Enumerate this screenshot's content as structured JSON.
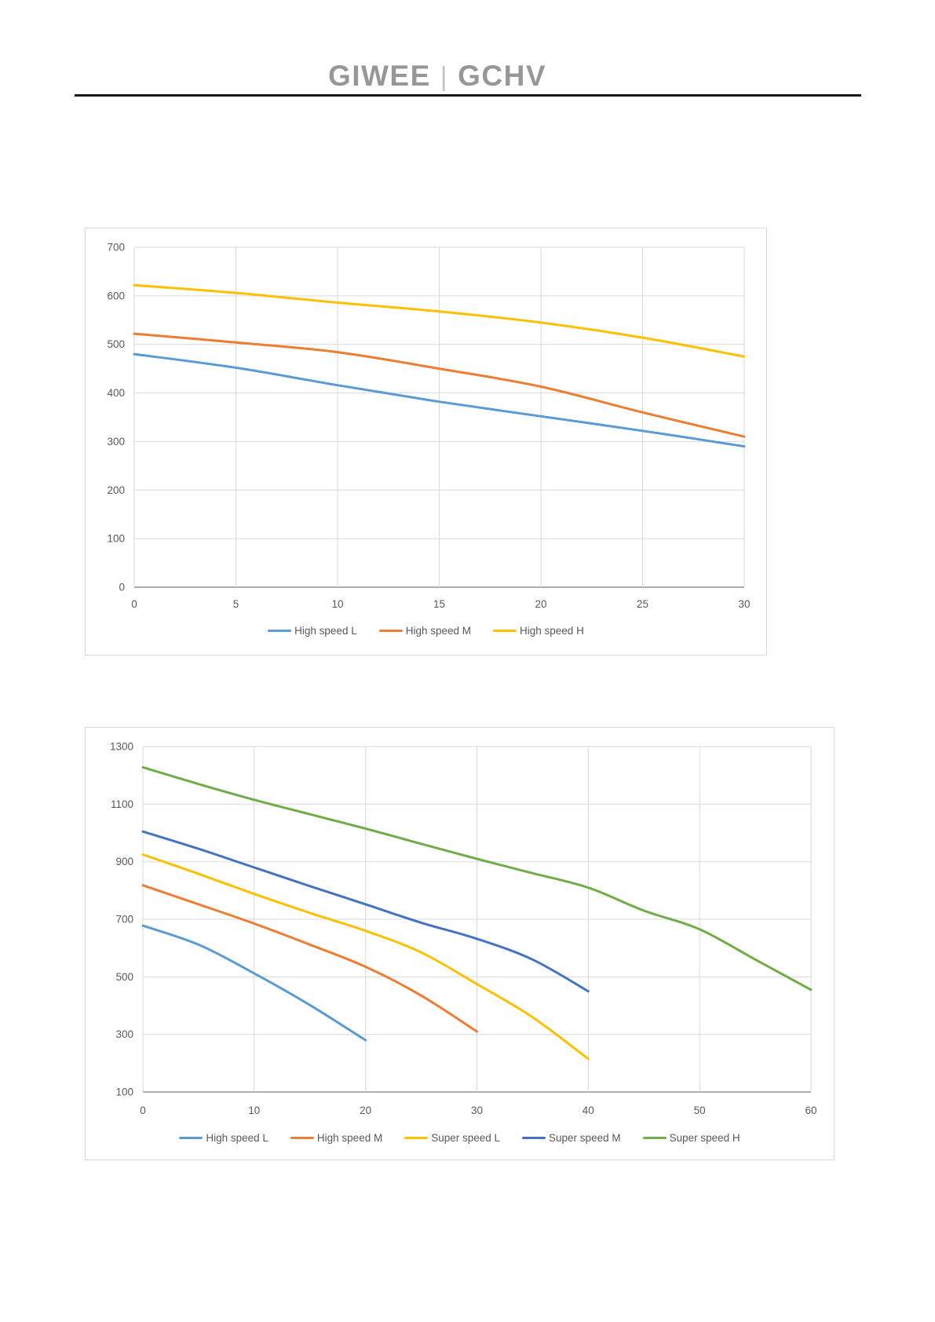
{
  "header": {
    "brand_left": "GIWEE",
    "separator": "|",
    "brand_right": "GCHV"
  },
  "colors": {
    "gridline": "#d9d9d9",
    "axis_line": "#adadad",
    "tick_text": "#595959",
    "panel_border": "#d7d7d7"
  },
  "chart_data": [
    {
      "type": "line",
      "grid": true,
      "legend_position": "bottom",
      "xlim": [
        0,
        30
      ],
      "ylim": [
        0,
        700
      ],
      "xticks": [
        0,
        5,
        10,
        15,
        20,
        25,
        30
      ],
      "yticks": [
        0,
        100,
        200,
        300,
        400,
        500,
        600,
        700
      ],
      "series": [
        {
          "name": "High speed L",
          "color": "#5B9BD5",
          "x": [
            0,
            5,
            10,
            15,
            20,
            25,
            30
          ],
          "values": [
            480,
            452,
            416,
            382,
            352,
            322,
            290
          ]
        },
        {
          "name": "High speed M",
          "color": "#ED7D31",
          "x": [
            0,
            5,
            10,
            15,
            20,
            25,
            30
          ],
          "values": [
            522,
            504,
            484,
            450,
            413,
            360,
            310
          ]
        },
        {
          "name": "High speed H",
          "color": "#FFC000",
          "x": [
            0,
            5,
            10,
            15,
            20,
            25,
            30
          ],
          "values": [
            622,
            606,
            586,
            568,
            545,
            514,
            475
          ]
        }
      ]
    },
    {
      "type": "line",
      "grid": true,
      "legend_position": "bottom",
      "xlim": [
        0,
        60
      ],
      "ylim": [
        100,
        1300
      ],
      "xticks": [
        0,
        10,
        20,
        30,
        40,
        50,
        60
      ],
      "yticks": [
        100,
        300,
        500,
        700,
        900,
        1100,
        1300
      ],
      "series": [
        {
          "name": "High speed L",
          "color": "#5B9BD5",
          "x": [
            0,
            5,
            10,
            15,
            20
          ],
          "values": [
            678,
            612,
            512,
            402,
            280
          ]
        },
        {
          "name": "High speed M",
          "color": "#ED7D31",
          "x": [
            0,
            5,
            10,
            15,
            20,
            25,
            30
          ],
          "values": [
            818,
            752,
            685,
            612,
            535,
            435,
            310
          ]
        },
        {
          "name": "Super speed L",
          "color": "#FFC000",
          "x": [
            0,
            5,
            10,
            15,
            20,
            25,
            30,
            35,
            40
          ],
          "values": [
            925,
            858,
            788,
            722,
            660,
            585,
            475,
            360,
            215
          ]
        },
        {
          "name": "Super speed M",
          "color": "#4472C4",
          "x": [
            0,
            5,
            10,
            15,
            20,
            25,
            30,
            35,
            40
          ],
          "values": [
            1005,
            945,
            880,
            815,
            752,
            688,
            632,
            560,
            450
          ]
        },
        {
          "name": "Super speed H",
          "color": "#70AD47",
          "x": [
            0,
            5,
            10,
            15,
            20,
            25,
            30,
            35,
            40,
            45,
            50,
            55,
            60
          ],
          "values": [
            1228,
            1170,
            1115,
            1065,
            1015,
            962,
            910,
            860,
            810,
            730,
            665,
            560,
            455
          ]
        }
      ]
    }
  ]
}
